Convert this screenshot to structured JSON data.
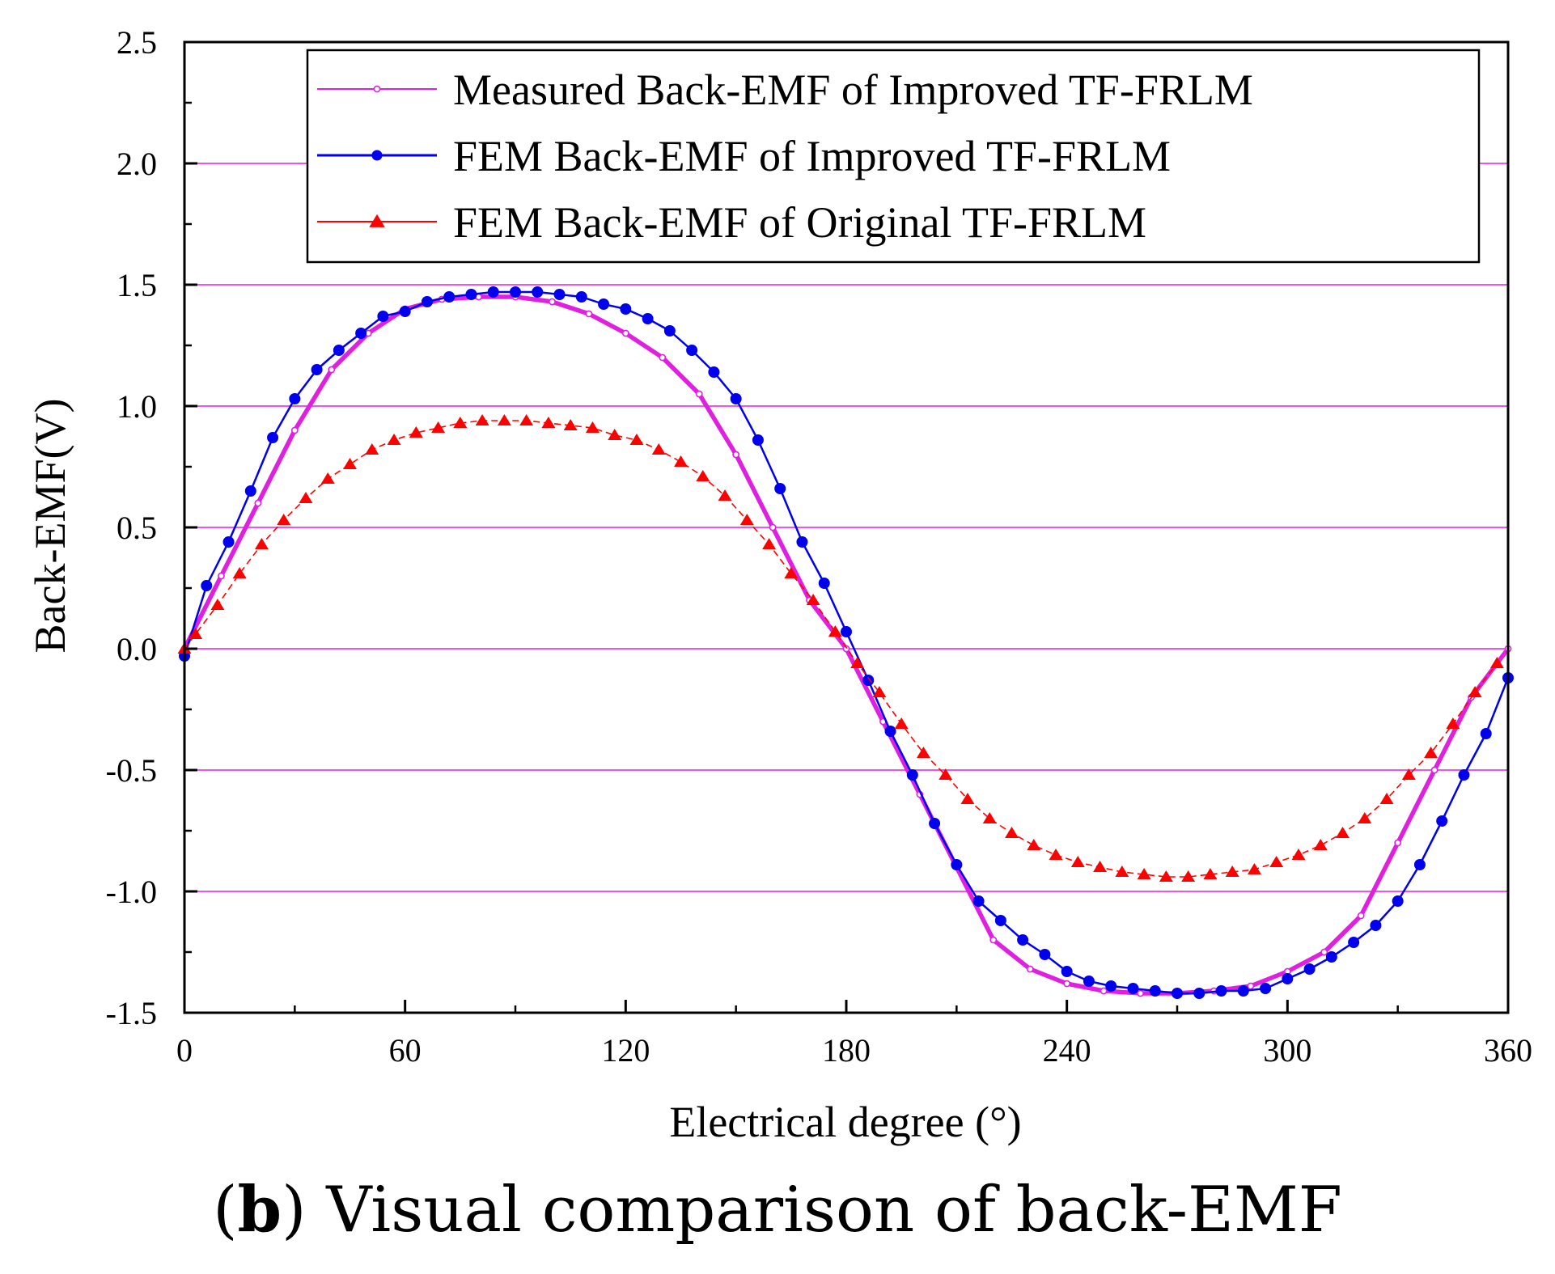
{
  "caption": {
    "letter": "b",
    "text": "Visual comparison of back-EMF"
  },
  "chart_data": {
    "type": "line",
    "xlabel": "Electrical degree (°)",
    "ylabel": "Back-EMF(V)",
    "xlim": [
      0,
      360
    ],
    "ylim": [
      -1.5,
      2.5
    ],
    "xticks": [
      0,
      60,
      120,
      180,
      240,
      300,
      360
    ],
    "yticks": [
      -1.5,
      -1.0,
      -0.5,
      0.0,
      0.5,
      1.0,
      1.5,
      2.0,
      2.5
    ],
    "ytick_labels": [
      "-1.5",
      "-1.0",
      "-0.5",
      "0.0",
      "0.5",
      "1.0",
      "1.5",
      "2.0",
      "2.5"
    ],
    "grid": "horizontal",
    "legend_position": "top-right",
    "series": [
      {
        "name": "Measured Back-EMF of Improved TF-FRLM",
        "color": "#e020e0",
        "marker": "open-circle",
        "x": [
          0,
          10,
          20,
          30,
          40,
          50,
          60,
          70,
          80,
          90,
          100,
          110,
          120,
          130,
          140,
          150,
          160,
          170,
          180,
          190,
          200,
          210,
          220,
          230,
          240,
          250,
          260,
          270,
          280,
          290,
          300,
          310,
          320,
          330,
          340,
          350,
          360
        ],
        "y": [
          0,
          0.3,
          0.6,
          0.9,
          1.15,
          1.3,
          1.4,
          1.44,
          1.45,
          1.45,
          1.43,
          1.38,
          1.3,
          1.2,
          1.05,
          0.8,
          0.5,
          0.2,
          0,
          -0.3,
          -0.6,
          -0.9,
          -1.2,
          -1.32,
          -1.38,
          -1.41,
          -1.42,
          -1.42,
          -1.41,
          -1.39,
          -1.33,
          -1.25,
          -1.1,
          -0.8,
          -0.5,
          -0.2,
          0
        ]
      },
      {
        "name": "FEM Back-EMF of Improved TF-FRLM",
        "color": "#0000ee",
        "marker": "filled-circle",
        "x": [
          0,
          6,
          12,
          18,
          24,
          30,
          36,
          42,
          48,
          54,
          60,
          66,
          72,
          78,
          84,
          90,
          96,
          102,
          108,
          114,
          120,
          126,
          132,
          138,
          144,
          150,
          156,
          162,
          168,
          174,
          180,
          186,
          192,
          198,
          204,
          210,
          216,
          222,
          228,
          234,
          240,
          246,
          252,
          258,
          264,
          270,
          276,
          282,
          288,
          294,
          300,
          306,
          312,
          318,
          324,
          330,
          336,
          342,
          348,
          354,
          360
        ],
        "y": [
          -0.03,
          0.26,
          0.44,
          0.65,
          0.87,
          1.03,
          1.15,
          1.23,
          1.3,
          1.37,
          1.39,
          1.43,
          1.45,
          1.46,
          1.47,
          1.47,
          1.47,
          1.46,
          1.45,
          1.42,
          1.4,
          1.36,
          1.31,
          1.23,
          1.14,
          1.03,
          0.86,
          0.66,
          0.44,
          0.27,
          0.07,
          -0.13,
          -0.34,
          -0.52,
          -0.72,
          -0.89,
          -1.04,
          -1.12,
          -1.2,
          -1.26,
          -1.33,
          -1.37,
          -1.39,
          -1.4,
          -1.41,
          -1.42,
          -1.42,
          -1.41,
          -1.41,
          -1.4,
          -1.36,
          -1.32,
          -1.27,
          -1.21,
          -1.14,
          -1.04,
          -0.89,
          -0.71,
          -0.52,
          -0.35,
          -0.12
        ]
      },
      {
        "name": "FEM Back-EMF of Original TF-FRLM",
        "color": "#ff0000",
        "marker": "filled-triangle",
        "x": [
          0,
          3,
          9,
          15,
          21,
          27,
          33,
          39,
          45,
          51,
          57,
          63,
          69,
          75,
          81,
          87,
          93,
          99,
          105,
          111,
          117,
          123,
          129,
          135,
          141,
          147,
          153,
          159,
          165,
          171,
          177,
          183,
          189,
          195,
          201,
          207,
          213,
          219,
          225,
          231,
          237,
          243,
          249,
          255,
          261,
          267,
          273,
          279,
          285,
          291,
          297,
          303,
          309,
          315,
          321,
          327,
          333,
          339,
          345,
          351,
          357
        ],
        "y": [
          0,
          0.06,
          0.18,
          0.31,
          0.43,
          0.53,
          0.62,
          0.7,
          0.76,
          0.82,
          0.86,
          0.89,
          0.91,
          0.93,
          0.94,
          0.94,
          0.94,
          0.93,
          0.92,
          0.91,
          0.88,
          0.86,
          0.82,
          0.77,
          0.71,
          0.63,
          0.53,
          0.43,
          0.31,
          0.2,
          0.07,
          -0.06,
          -0.18,
          -0.31,
          -0.43,
          -0.52,
          -0.62,
          -0.7,
          -0.76,
          -0.81,
          -0.85,
          -0.88,
          -0.9,
          -0.92,
          -0.93,
          -0.94,
          -0.94,
          -0.93,
          -0.92,
          -0.91,
          -0.88,
          -0.85,
          -0.81,
          -0.76,
          -0.7,
          -0.62,
          -0.52,
          -0.43,
          -0.31,
          -0.18,
          -0.06
        ]
      }
    ]
  }
}
